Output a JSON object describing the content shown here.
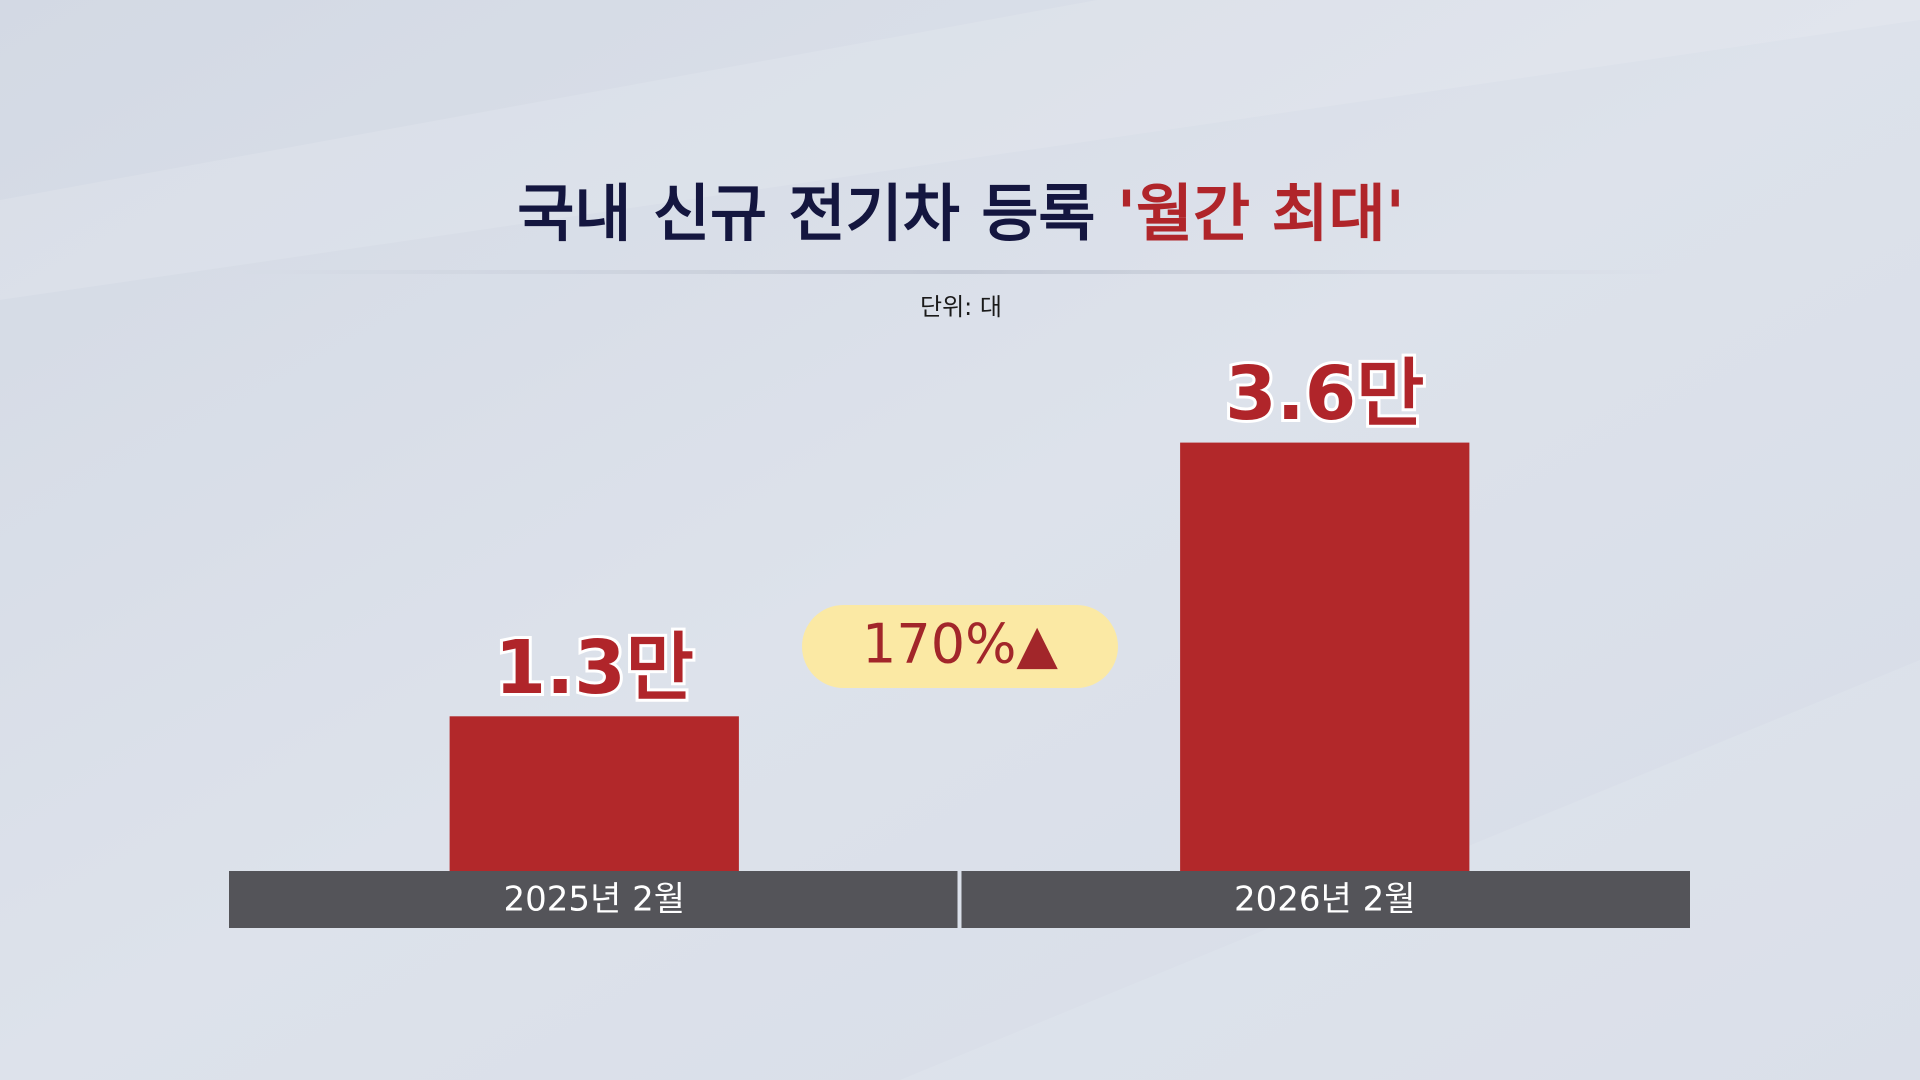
{
  "chart_data": {
    "type": "bar",
    "title": "국내 신규 전기차 등록",
    "title_highlight": "'월간 최대'",
    "unit_label": "단위: 대",
    "categories": [
      "2025년 2월",
      "2026년 2월"
    ],
    "values": [
      13000,
      36000
    ],
    "value_labels": [
      "1.3만",
      "3.6만"
    ],
    "color": "#b2282a",
    "ylim": [
      0,
      40000
    ],
    "annotation": "170%▲"
  }
}
